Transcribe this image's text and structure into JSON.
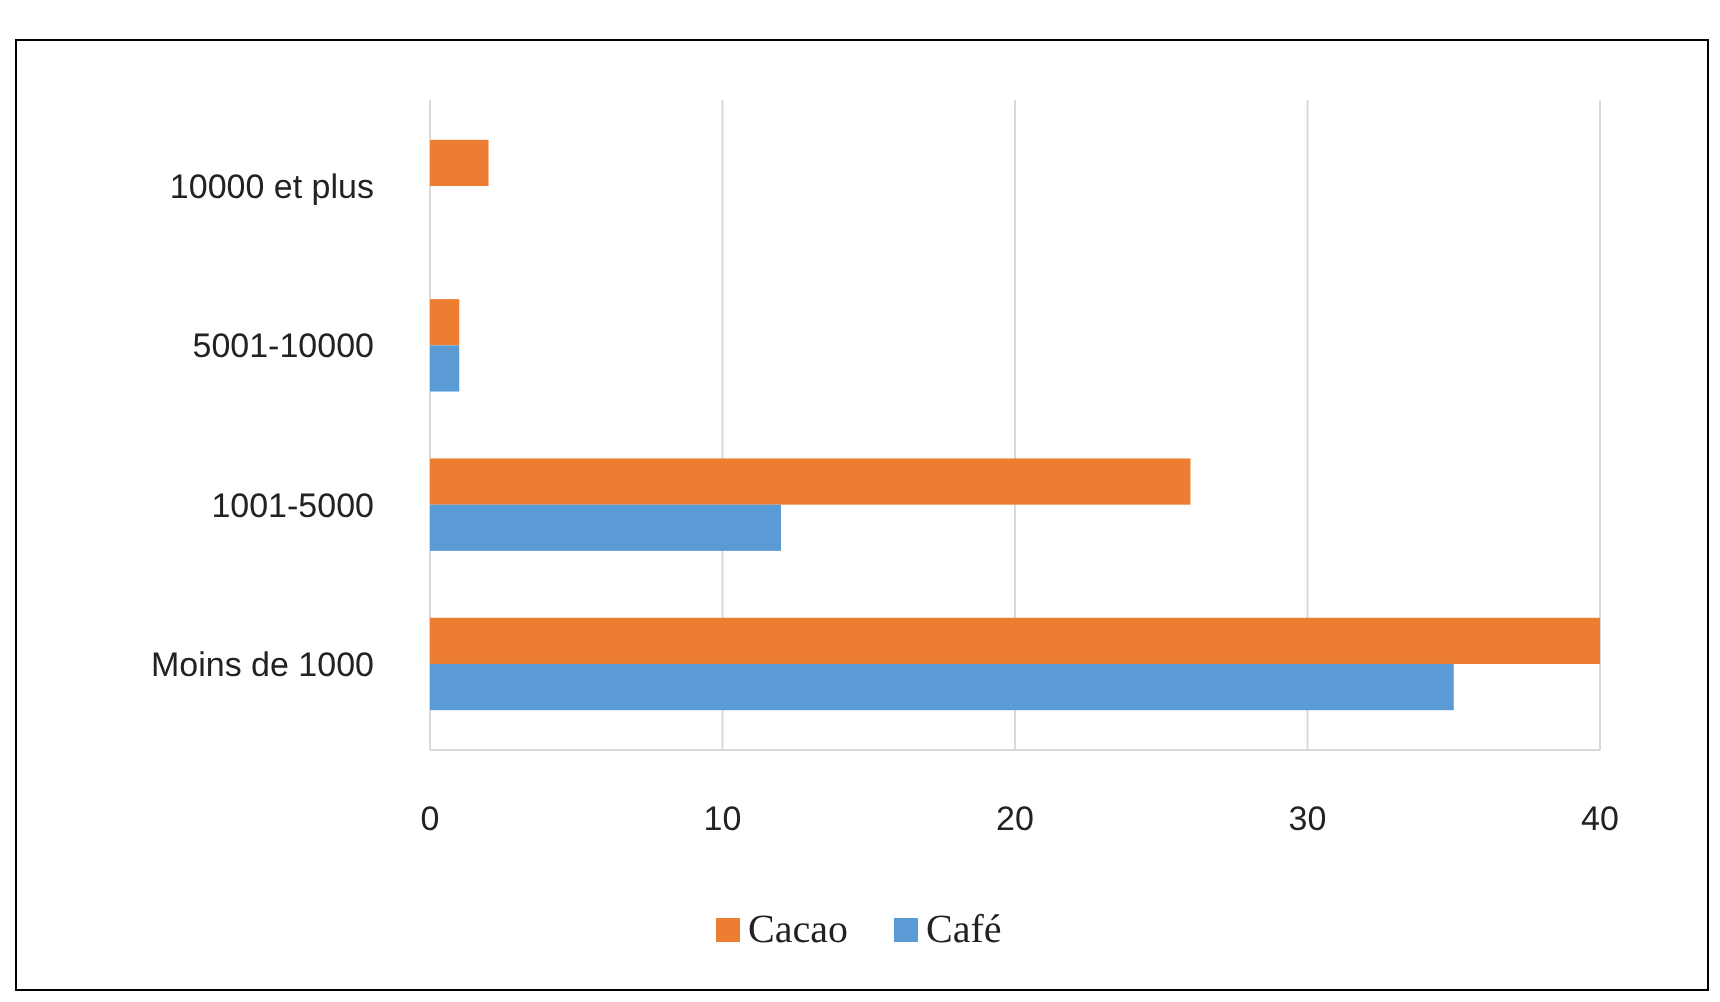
{
  "chart_data": {
    "type": "bar",
    "orientation": "horizontal",
    "categories": [
      "10000 et plus",
      "5001-10000",
      "1001-5000",
      "Moins de 1000"
    ],
    "series": [
      {
        "name": "Cacao",
        "color": "#ed7d31",
        "values": [
          2,
          1,
          26,
          40
        ]
      },
      {
        "name": "Café",
        "color": "#5b9bd5",
        "values": [
          0,
          1,
          12,
          35
        ]
      }
    ],
    "xlim": [
      0,
      40
    ],
    "xticks": [
      0,
      10,
      20,
      30,
      40
    ],
    "grid": "x",
    "legend": "bottom"
  }
}
